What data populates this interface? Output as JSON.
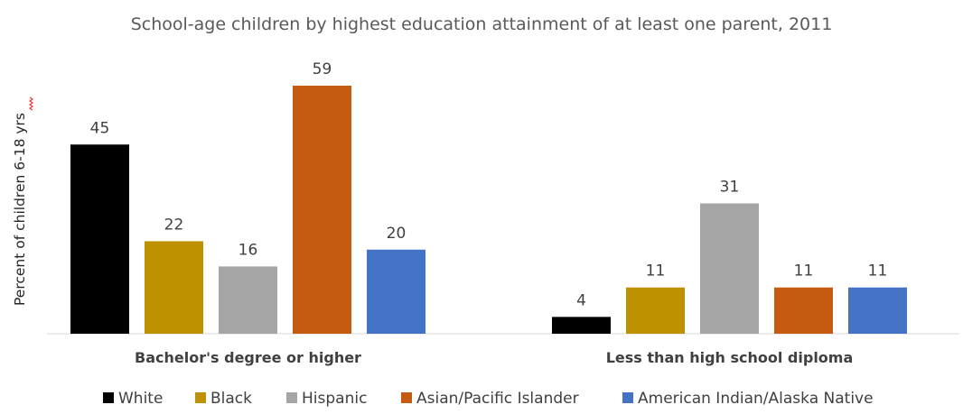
{
  "chart_data": {
    "type": "bar",
    "title": "School-age children by highest education attainment of at least one parent, 2011",
    "ylabel": "Percent of children 6-18 yrs",
    "xlabel": "",
    "categories": [
      "Bachelor's degree or higher",
      "Less than high school diploma"
    ],
    "series": [
      {
        "name": "White",
        "color": "#000000",
        "values": [
          45,
          4
        ]
      },
      {
        "name": "Black",
        "color": "#BF9000",
        "values": [
          22,
          11
        ]
      },
      {
        "name": "Hispanic",
        "color": "#A5A5A5",
        "values": [
          16,
          31
        ]
      },
      {
        "name": "Asian/Pacific Islander",
        "color": "#C55A11",
        "values": [
          59,
          11
        ]
      },
      {
        "name": "American Indian/Alaska Native",
        "color": "#4472C4",
        "values": [
          20,
          11
        ]
      }
    ],
    "ylim": [
      0,
      59
    ],
    "legend_position": "bottom",
    "grid": false,
    "data_labels": true
  }
}
